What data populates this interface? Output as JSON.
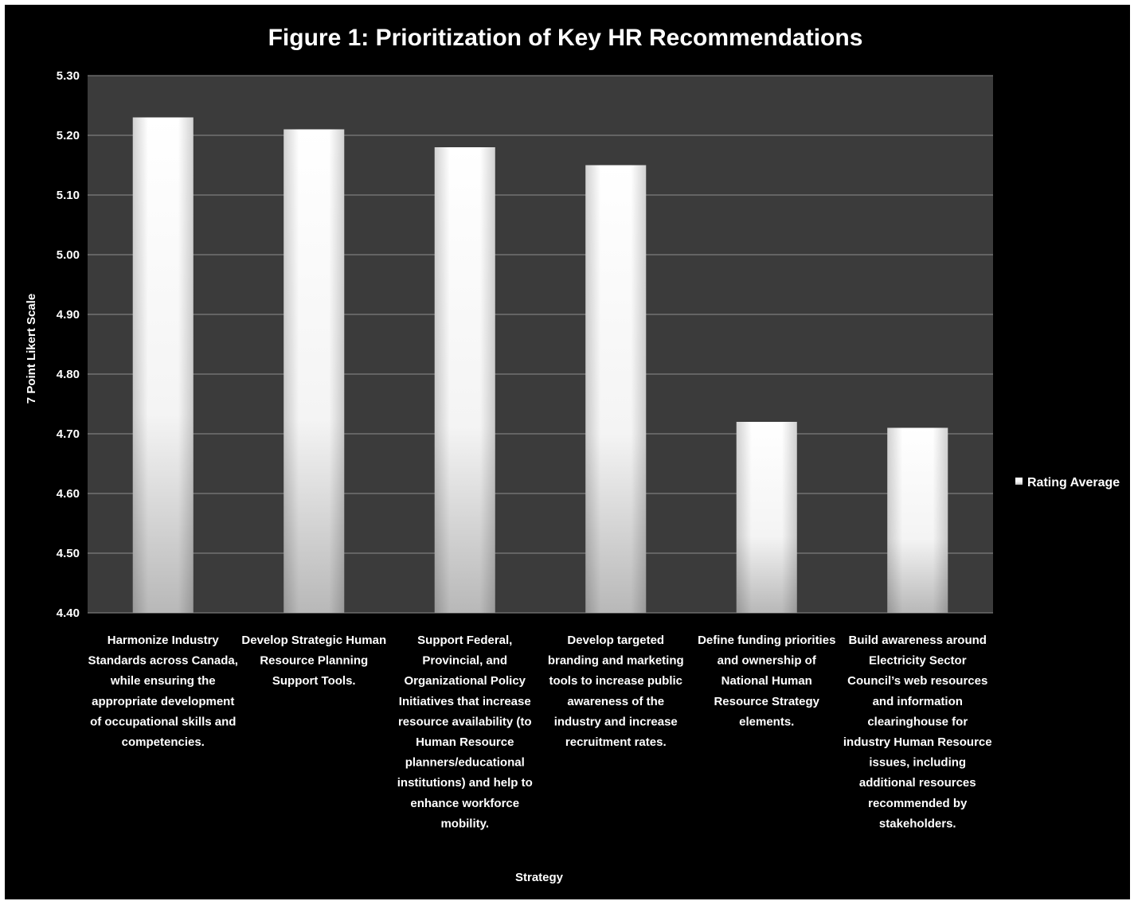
{
  "chart_data": {
    "type": "bar",
    "title": "Figure 1: Prioritization of Key HR Recommendations",
    "xlabel": "Strategy",
    "ylabel": "7 Point Likert Scale",
    "ylim": [
      4.4,
      5.3
    ],
    "yticks": [
      "4.40",
      "4.50",
      "4.60",
      "4.70",
      "4.80",
      "4.90",
      "5.00",
      "5.10",
      "5.20",
      "5.30"
    ],
    "grid": true,
    "legend_position": "right",
    "categories": [
      [
        "Harmonize Industry",
        "Standards across Canada,",
        "while ensuring the",
        "appropriate development",
        "of occupational skills and",
        "competencies."
      ],
      [
        "Develop Strategic Human",
        "Resource Planning",
        "Support Tools."
      ],
      [
        "Support Federal,",
        "Provincial, and",
        "Organizational Policy",
        "Initiatives that increase",
        "resource availability (to",
        "Human Resource",
        "planners/educational",
        "institutions) and help to",
        "enhance workforce",
        "mobility."
      ],
      [
        "Develop targeted",
        "branding and marketing",
        "tools to increase public",
        "awareness of the",
        "industry and increase",
        "recruitment rates."
      ],
      [
        "Define funding priorities",
        "and ownership of",
        "National Human",
        "Resource Strategy",
        "elements."
      ],
      [
        "Build awareness around",
        "Electricity Sector",
        "Council’s web resources",
        "and information",
        "clearinghouse for",
        "industry Human Resource",
        "issues, including",
        "additional resources",
        "recommended by",
        "stakeholders."
      ]
    ],
    "series": [
      {
        "name": "Rating Average",
        "values": [
          5.23,
          5.21,
          5.18,
          5.15,
          4.72,
          4.71
        ]
      }
    ],
    "colors": {
      "background": "#000000",
      "plot_area": "#3b3b3b",
      "grid": "#8c8c8c",
      "bar_light": "#ffffff",
      "bar_dark": "#b8b8b8"
    }
  }
}
